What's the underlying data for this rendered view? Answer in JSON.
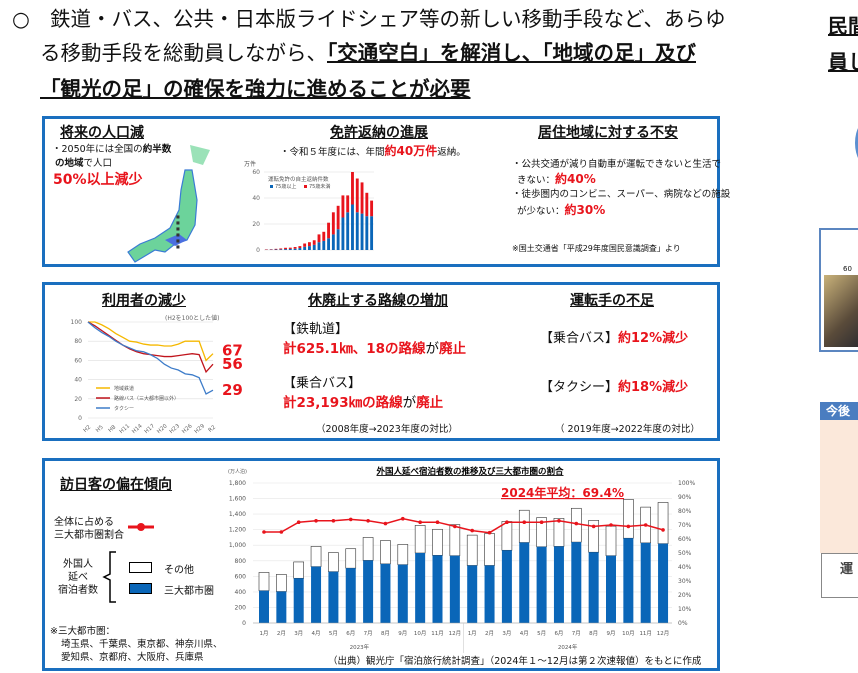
{
  "lead": {
    "bullet": "○",
    "line1": "鉄道・バス、公共・日本版ライドシェア等の新しい移動手段など、あらゆ",
    "line2_plain": "る移動手段を総動員しながら、",
    "line2_bold": "「交通空白」を解消し、「地域の足」及び",
    "line3_bold": "「観光の足」の確保を強力に進めることが必要"
  },
  "panel1": {
    "pop": {
      "title": "将来の人口減",
      "text1": "・2050年には全国の",
      "text1b": "約半数",
      "text2b": "の地域",
      "text2": "で人口",
      "big": "50%以上減少"
    },
    "license": {
      "title": "免許返納の進展",
      "text": "・令和５年度には、年間",
      "big": "約40万件",
      "tail": "返納。",
      "unit": "万件",
      "chart_title": "運転免許の自主返納件数",
      "legend": [
        "75歳以上",
        "75歳未満"
      ]
    },
    "anxiety": {
      "title": "居住地域に対する不安",
      "item1": "・公共交通が減り自動車が運転できないと生活で",
      "item1b": "きない：",
      "item1v": "約40%",
      "item2": "・徒歩圏内のコンビニ、スーパー、病院などの施設",
      "item2b": "が少ない：",
      "item2v": "約30%",
      "source": "※国土交通省「平成29年度国民意識調査」より"
    }
  },
  "panel2": {
    "users": {
      "title": "利用者の減少",
      "note": "(H2を100とした値)",
      "legend": [
        "地域鉄道",
        "路線バス（三大都市圏以外）",
        "タクシー"
      ],
      "ends": [
        "67",
        "56",
        "29"
      ],
      "yticks": [
        "100",
        "80",
        "60",
        "40",
        "20",
        "0"
      ],
      "xticks": [
        "H2",
        "H5",
        "H8",
        "H11",
        "H14",
        "H17",
        "H20",
        "H23",
        "H26",
        "H29",
        "R2"
      ]
    },
    "routes": {
      "title": "休廃止する路線の増加",
      "rail_label": "【鉄軌道】",
      "rail_value": "計625.1㎞、18の路線",
      "rail_suffix": "が",
      "rail_end": "廃止",
      "bus_label": "【乗合バス】",
      "bus_value": "計23,193㎞の路線",
      "bus_suffix": "が",
      "bus_end": "廃止",
      "period": "（2008年度→2023年度の対比）"
    },
    "drivers": {
      "title": "運転手の不足",
      "bus_label": "【乗合バス】",
      "bus_value": "約12%減少",
      "taxi_label": "【タクシー】",
      "taxi_value": "約18%減少",
      "period": "（ 2019年度→2022年度の対比）"
    }
  },
  "panel3": {
    "title": "訪日客の偏在傾向",
    "legend_line": "全体に占める\n三大都市圏割合",
    "legend_group": "外国人\n延べ\n宿泊者数",
    "legend_other": "その他",
    "legend_metro": "三大都市圏",
    "note_title": "※三大都市圏：",
    "note1": "埼玉県、千葉県、東京都、神奈川県、",
    "note2": "愛知県、京都府、大阪府、兵庫県",
    "source": "（出典）観光庁「宿泊旅行統計調査」（2024年１～12月は第２次速報値）をもとに作成"
  },
  "right": {
    "line1": "民間",
    "line2": "員し",
    "photo_caption": "60",
    "box_header": "今後",
    "box_footer": "運"
  },
  "colors": {
    "frame": "#1a6fbf",
    "bar_blue": "#0a66b8",
    "red": "#e8141c",
    "yellow": "#f5b800",
    "darkred": "#c0141c",
    "taxi": "#3d7cc9"
  },
  "chart_data": [
    {
      "type": "bar",
      "stacked": true,
      "title": "運転免許の自主返納件数",
      "ylabel": "万件",
      "ylim": [
        0,
        60
      ],
      "yticks": [
        0,
        20,
        40,
        60
      ],
      "series": [
        {
          "name": "75歳以上",
          "values": [
            0.2,
            0.3,
            0.4,
            0.5,
            0.7,
            0.8,
            1,
            1.5,
            2.5,
            3,
            4,
            6,
            7,
            9,
            12,
            16,
            25,
            29,
            35,
            29,
            28,
            26,
            26
          ]
        },
        {
          "name": "75歳未満",
          "values": [
            0.3,
            0.3,
            0.5,
            0.7,
            1,
            1,
            1.3,
            1.5,
            2.5,
            3,
            3.5,
            6,
            7,
            12,
            17,
            18,
            17,
            13,
            25,
            26,
            24,
            18,
            12
          ]
        }
      ]
    },
    {
      "type": "line",
      "title": "利用者の減少",
      "ylim": [
        0,
        100
      ],
      "series": [
        {
          "name": "地域鉄道",
          "values": [
            100,
            100,
            97,
            93,
            88,
            84,
            80,
            79,
            77,
            76,
            76,
            75,
            75,
            77,
            80,
            80,
            80,
            60,
            67
          ]
        },
        {
          "name": "路線バス（三大都市圏以外）",
          "values": [
            100,
            96,
            91,
            86,
            81,
            76,
            72,
            69,
            67,
            66,
            65,
            64,
            64,
            65,
            66,
            67,
            66,
            48,
            56
          ]
        },
        {
          "name": "タクシー",
          "values": [
            100,
            94,
            89,
            85,
            80,
            76,
            73,
            70,
            69,
            66,
            62,
            56,
            52,
            50,
            46,
            45,
            42,
            25,
            29
          ]
        }
      ]
    },
    {
      "type": "bar",
      "stacked": true,
      "title": "外国人延べ宿泊者数の推移及び三大都市圏の割合",
      "ylabel": "(万人泊)",
      "ylim": [
        0,
        1800
      ],
      "y2lim": [
        0,
        100
      ],
      "annotation": "2024年平均：69.4%",
      "categories": [
        "1月",
        "2月",
        "3月",
        "4月",
        "5月",
        "6月",
        "7月",
        "8月",
        "9月",
        "10月",
        "11月",
        "12月",
        "1月",
        "2月",
        "3月",
        "4月",
        "5月",
        "6月",
        "7月",
        "8月",
        "9月",
        "10月",
        "11月",
        "12月"
      ],
      "groups": [
        "2023年",
        "2024年"
      ],
      "yticks": [
        "0",
        "200",
        "400",
        "600",
        "800",
        "1,000",
        "1,200",
        "1,400",
        "1,600",
        "1,800"
      ],
      "y2ticks": [
        "0%",
        "10%",
        "20%",
        "30%",
        "40%",
        "50%",
        "60%",
        "70%",
        "80%",
        "90%",
        "100%"
      ],
      "series": [
        {
          "name": "三大都市圏",
          "values": [
            415,
            405,
            575,
            725,
            660,
            705,
            805,
            760,
            750,
            900,
            870,
            865,
            740,
            740,
            935,
            1035,
            980,
            985,
            1040,
            910,
            865,
            1090,
            1030,
            1020
          ]
        },
        {
          "name": "その他",
          "values": [
            235,
            220,
            210,
            260,
            245,
            250,
            295,
            300,
            260,
            355,
            335,
            400,
            390,
            410,
            370,
            415,
            375,
            360,
            435,
            410,
            380,
            500,
            460,
            530
          ]
        },
        {
          "name": "全体に占める三大都市圏割合",
          "axis": "right",
          "values": [
            65,
            65,
            72,
            73,
            73,
            74,
            73,
            71,
            74.5,
            72,
            72,
            69,
            66,
            64.5,
            72,
            72,
            72,
            73,
            71,
            69,
            70,
            69,
            70,
            66.5
          ]
        }
      ]
    }
  ]
}
